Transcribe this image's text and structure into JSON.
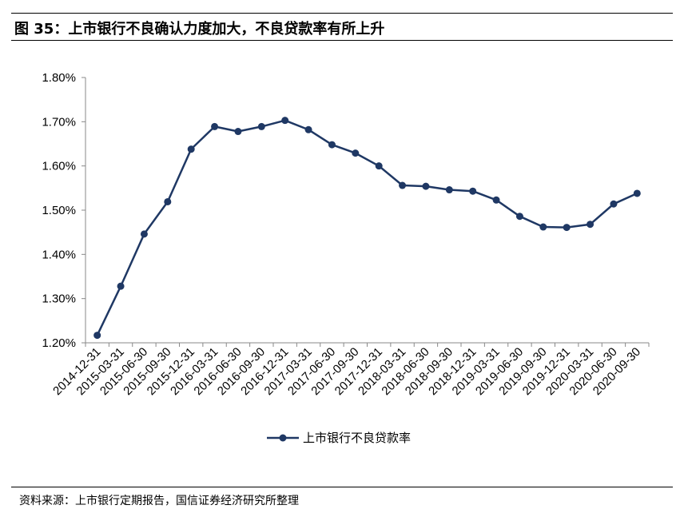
{
  "header": {
    "title": "图 35：上市银行不良确认力度加大，不良贷款率有所上升"
  },
  "footer": {
    "source": "资料来源：上市银行定期报告，国信证券经济研究所整理"
  },
  "chart_data": {
    "type": "line",
    "title": "",
    "xlabel": "",
    "ylabel": "",
    "ylim": [
      0.012,
      0.018
    ],
    "yticks": [
      "1.20%",
      "1.30%",
      "1.40%",
      "1.50%",
      "1.60%",
      "1.70%",
      "1.80%"
    ],
    "grid": false,
    "legend_position": "bottom",
    "series_color": "#1f3864",
    "categories": [
      "2014-12-31",
      "2015-03-31",
      "2015-06-30",
      "2015-09-30",
      "2015-12-31",
      "2016-03-31",
      "2016-06-30",
      "2016-09-30",
      "2016-12-31",
      "2017-03-31",
      "2017-06-30",
      "2017-09-30",
      "2017-12-31",
      "2018-03-31",
      "2018-06-30",
      "2018-09-30",
      "2018-12-31",
      "2019-03-31",
      "2019-06-30",
      "2019-09-30",
      "2019-12-31",
      "2020-03-31",
      "2020-06-30",
      "2020-09-30"
    ],
    "series": [
      {
        "name": "上市银行不良贷款率",
        "values": [
          0.01217,
          0.01328,
          0.01446,
          0.01519,
          0.01638,
          0.01689,
          0.01678,
          0.01689,
          0.01703,
          0.01682,
          0.01648,
          0.01629,
          0.016,
          0.01556,
          0.01554,
          0.01546,
          0.01543,
          0.01523,
          0.01486,
          0.01462,
          0.01461,
          0.01468,
          0.01514,
          0.01538
        ]
      }
    ]
  }
}
